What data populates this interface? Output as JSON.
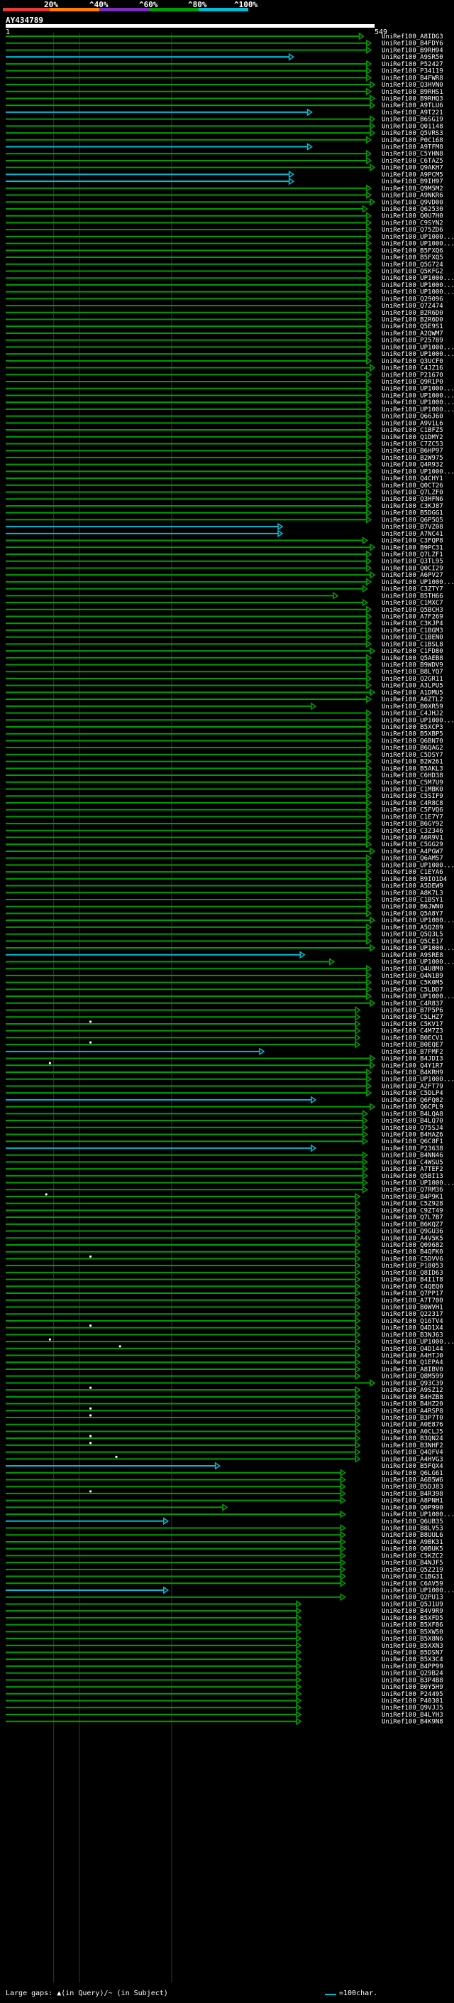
{
  "scale": {
    "labels": [
      "20%",
      "^40%",
      "^60%",
      "^80%",
      "^100%"
    ],
    "colors": [
      "#e53935",
      "#ff7f00",
      "#7b2fbe",
      "#00a000",
      "#00bcd4"
    ]
  },
  "query": {
    "id": "AY434789",
    "start": "1",
    "end": "549"
  },
  "footer": {
    "gaps_label": "Large gaps: ▲(in Query)/~ (in Subject)",
    "legend_label": "=100char."
  },
  "icons": {
    "arrow": "arrowhead-icon",
    "gap": "gap-marker-icon"
  },
  "hits": [
    {
      "id": "UniRef100_A8IDG3",
      "len": 0.97
    },
    {
      "id": "UniRef100_B4FDY6",
      "len": 0.99
    },
    {
      "id": "UniRef100_B9RH94",
      "len": 0.99
    },
    {
      "id": "UniRef100_A9SR50",
      "len": 0.78,
      "color": "cyan"
    },
    {
      "id": "UniRef100_P52427",
      "len": 0.99
    },
    {
      "id": "UniRef100_P34119",
      "len": 0.99
    },
    {
      "id": "UniRef100_B4FWR8",
      "len": 0.99
    },
    {
      "id": "UniRef100_Q3HVN0",
      "len": 1.0
    },
    {
      "id": "UniRef100_B9RHS1",
      "len": 0.99
    },
    {
      "id": "UniRef100_B9RHQ3",
      "len": 1.0
    },
    {
      "id": "UniRef100_A9TLU6",
      "len": 1.0
    },
    {
      "id": "UniRef100_A9T221",
      "len": 0.83,
      "color": "cyan"
    },
    {
      "id": "UniRef100_B6SG19",
      "len": 1.0
    },
    {
      "id": "UniRef100_Q01148",
      "len": 1.0
    },
    {
      "id": "UniRef100_Q5VRS3",
      "len": 1.0
    },
    {
      "id": "UniRef100_P0C168",
      "len": 0.99
    },
    {
      "id": "UniRef100_A9TFM8",
      "len": 0.83,
      "color": "cyan"
    },
    {
      "id": "UniRef100_C5YHN8",
      "len": 0.99
    },
    {
      "id": "UniRef100_C6TAZ5",
      "len": 0.99
    },
    {
      "id": "UniRef100_Q9AKH7",
      "len": 1.0
    },
    {
      "id": "UniRef100_A9PCM5",
      "len": 0.78,
      "color": "cyan"
    },
    {
      "id": "UniRef100_B9IH97",
      "len": 0.78,
      "color": "cyan"
    },
    {
      "id": "UniRef100_Q9M5M2",
      "len": 0.99
    },
    {
      "id": "UniRef100_A9NKR6",
      "len": 0.99
    },
    {
      "id": "UniRef100_Q9VD00",
      "len": 1.0
    },
    {
      "id": "UniRef100_Q62530",
      "len": 0.98
    },
    {
      "id": "UniRef100_Q0U7H0",
      "len": 0.99
    },
    {
      "id": "UniRef100_C9SYN2",
      "len": 0.99
    },
    {
      "id": "UniRef100_Q75ZD6",
      "len": 0.99
    },
    {
      "id": "UniRef100_UP1000...",
      "len": 0.99
    },
    {
      "id": "UniRef100_UP1000...",
      "len": 0.99
    },
    {
      "id": "UniRef100_B5FXQ6",
      "len": 0.99
    },
    {
      "id": "UniRef100_B5FXQ5",
      "len": 0.99
    },
    {
      "id": "UniRef100_Q5G724",
      "len": 0.99
    },
    {
      "id": "UniRef100_Q5KFG2",
      "len": 0.99
    },
    {
      "id": "UniRef100_UP1000...",
      "len": 0.99
    },
    {
      "id": "UniRef100_UP1000...",
      "len": 0.99
    },
    {
      "id": "UniRef100_UP1000...",
      "len": 0.99
    },
    {
      "id": "UniRef100_Q29096",
      "len": 0.99
    },
    {
      "id": "UniRef100_Q7Z474",
      "len": 0.99
    },
    {
      "id": "UniRef100_B2R6D0",
      "len": 0.99
    },
    {
      "id": "UniRef100_B2R6D0",
      "len": 0.99
    },
    {
      "id": "UniRef100_Q5E9S1",
      "len": 0.99
    },
    {
      "id": "UniRef100_A2QWM7",
      "len": 0.99
    },
    {
      "id": "UniRef100_P25789",
      "len": 0.99
    },
    {
      "id": "UniRef100_UP1000...",
      "len": 0.99
    },
    {
      "id": "UniRef100_UP1000...",
      "len": 0.99
    },
    {
      "id": "UniRef100_Q3UCF0",
      "len": 0.99
    },
    {
      "id": "UniRef100_C4JZ16",
      "len": 1.0
    },
    {
      "id": "UniRef100_P21670",
      "len": 0.99
    },
    {
      "id": "UniRef100_Q9R1P0",
      "len": 0.99
    },
    {
      "id": "UniRef100_UP1000...",
      "len": 0.99
    },
    {
      "id": "UniRef100_UP1000...",
      "len": 0.99
    },
    {
      "id": "UniRef100_UP1000...",
      "len": 0.99
    },
    {
      "id": "UniRef100_UP1000...",
      "len": 0.99
    },
    {
      "id": "UniRef100_Q66J60",
      "len": 0.99
    },
    {
      "id": "UniRef100_A9V1L6",
      "len": 0.99
    },
    {
      "id": "UniRef100_C1BFZ5",
      "len": 0.99
    },
    {
      "id": "UniRef100_Q1DMY2",
      "len": 0.99
    },
    {
      "id": "UniRef100_C7ZC53",
      "len": 0.99
    },
    {
      "id": "UniRef100_B6HP97",
      "len": 0.99
    },
    {
      "id": "UniRef100_B2W975",
      "len": 0.99
    },
    {
      "id": "UniRef100_Q4R932",
      "len": 0.99
    },
    {
      "id": "UniRef100_UP1000...",
      "len": 0.99
    },
    {
      "id": "UniRef100_Q4CHY1",
      "len": 0.99
    },
    {
      "id": "UniRef100_Q0CT26",
      "len": 0.99
    },
    {
      "id": "UniRef100_Q7LZF0",
      "len": 0.99
    },
    {
      "id": "UniRef100_Q3HFN6",
      "len": 0.99
    },
    {
      "id": "UniRef100_C3KJ87",
      "len": 0.99
    },
    {
      "id": "UniRef100_B5DGG1",
      "len": 0.99
    },
    {
      "id": "UniRef100_Q6P5Q5",
      "len": 0.99
    },
    {
      "id": "UniRef100_B7VZ08",
      "len": 0.75,
      "color": "cyan"
    },
    {
      "id": "UniRef100_A7NC41",
      "len": 0.75,
      "color": "cyan"
    },
    {
      "id": "UniRef100_C3FQP8",
      "len": 0.98
    },
    {
      "id": "UniRef100_B9PC31",
      "len": 1.0
    },
    {
      "id": "UniRef100_Q7LZF1",
      "len": 0.99
    },
    {
      "id": "UniRef100_Q3TL95",
      "len": 0.99
    },
    {
      "id": "UniRef100_Q0CI29",
      "len": 0.99
    },
    {
      "id": "UniRef100_A6PV27",
      "len": 1.0
    },
    {
      "id": "UniRef100_UP1000...",
      "len": 0.99
    },
    {
      "id": "UniRef100_C3ZTY7",
      "len": 0.98
    },
    {
      "id": "UniRef100_B5TH66",
      "len": 0.9
    },
    {
      "id": "UniRef100_C1MXC7",
      "len": 0.98
    },
    {
      "id": "UniRef100_Q5BCH3",
      "len": 0.99
    },
    {
      "id": "UniRef100_A7F269",
      "len": 0.99
    },
    {
      "id": "UniRef100_C3KJP4",
      "len": 0.99
    },
    {
      "id": "UniRef100_C1BGM3",
      "len": 0.99
    },
    {
      "id": "UniRef100_C1BEN0",
      "len": 0.99
    },
    {
      "id": "UniRef100_C1BSL8",
      "len": 0.99
    },
    {
      "id": "UniRef100_C1FD80",
      "len": 1.0
    },
    {
      "id": "UniRef100_Q5AEB8",
      "len": 0.99
    },
    {
      "id": "UniRef100_B9WDV9",
      "len": 0.99
    },
    {
      "id": "UniRef100_B8LYQ7",
      "len": 0.99
    },
    {
      "id": "UniRef100_Q2GR11",
      "len": 0.99
    },
    {
      "id": "UniRef100_A3LPU5",
      "len": 0.99
    },
    {
      "id": "UniRef100_A1DMU5",
      "len": 1.0
    },
    {
      "id": "UniRef100_A6ZTL2",
      "len": 0.99
    },
    {
      "id": "UniRef100_B0XR59",
      "len": 0.84
    },
    {
      "id": "UniRef100_C4JHJ2",
      "len": 0.99
    },
    {
      "id": "UniRef100_UP1000...",
      "len": 0.99
    },
    {
      "id": "UniRef100_B5XCP3",
      "len": 0.99
    },
    {
      "id": "UniRef100_B5XBP5",
      "len": 0.99
    },
    {
      "id": "UniRef100_Q6BN70",
      "len": 0.99
    },
    {
      "id": "UniRef100_B6QAG2",
      "len": 0.99
    },
    {
      "id": "UniRef100_C5DSY7",
      "len": 0.99
    },
    {
      "id": "UniRef100_B2W261",
      "len": 0.99
    },
    {
      "id": "UniRef100_B5AKL3",
      "len": 0.99
    },
    {
      "id": "UniRef100_C6HD38",
      "len": 0.99
    },
    {
      "id": "UniRef100_C5M7U9",
      "len": 0.99
    },
    {
      "id": "UniRef100_C1MBK0",
      "len": 0.99
    },
    {
      "id": "UniRef100_C5SIF9",
      "len": 0.99
    },
    {
      "id": "UniRef100_C4R8C8",
      "len": 0.99
    },
    {
      "id": "UniRef100_C5FVQ6",
      "len": 0.99
    },
    {
      "id": "UniRef100_C1E7Y7",
      "len": 0.99
    },
    {
      "id": "UniRef100_B6GY92",
      "len": 0.99
    },
    {
      "id": "UniRef100_C3Z346",
      "len": 0.99
    },
    {
      "id": "UniRef100_A6R9V1",
      "len": 0.99
    },
    {
      "id": "UniRef100_C5GG29",
      "len": 0.99
    },
    {
      "id": "UniRef100_A4PGW7",
      "len": 1.0
    },
    {
      "id": "UniRef100_Q6AM57",
      "len": 0.99
    },
    {
      "id": "UniRef100_UP1000...",
      "len": 0.99
    },
    {
      "id": "UniRef100_C1EYA6",
      "len": 0.99
    },
    {
      "id": "UniRef100_B9IO1D4",
      "len": 0.99
    },
    {
      "id": "UniRef100_A5DEW9",
      "len": 0.99
    },
    {
      "id": "UniRef100_A8K7L3",
      "len": 0.99
    },
    {
      "id": "UniRef100_C1BSY1",
      "len": 0.99
    },
    {
      "id": "UniRef100_B6JWN0",
      "len": 0.99
    },
    {
      "id": "UniRef100_Q5A8Y7",
      "len": 0.99
    },
    {
      "id": "UniRef100_UP1000...",
      "len": 1.0
    },
    {
      "id": "UniRef100_A5Q289",
      "len": 0.99
    },
    {
      "id": "UniRef100_Q5Q3L5",
      "len": 0.99
    },
    {
      "id": "UniRef100_Q5CE17",
      "len": 0.99
    },
    {
      "id": "UniRef100_UP1000...",
      "len": 1.0
    },
    {
      "id": "UniRef100_A9SRE8",
      "len": 0.81,
      "color": "cyan"
    },
    {
      "id": "UniRef100_UP1000...",
      "len": 0.89
    },
    {
      "id": "UniRef100_Q4U8M0",
      "len": 0.99
    },
    {
      "id": "UniRef100_Q4N1B9",
      "len": 0.99
    },
    {
      "id": "UniRef100_C5K0M5",
      "len": 0.99
    },
    {
      "id": "UniRef100_C5LDD7",
      "len": 0.99
    },
    {
      "id": "UniRef100_UP1000...",
      "len": 0.99
    },
    {
      "id": "UniRef100_C4R837",
      "len": 1.0
    },
    {
      "id": "UniRef100_B7P5P6",
      "len": 0.96
    },
    {
      "id": "UniRef100_C5LHZ7",
      "len": 0.96
    },
    {
      "id": "UniRef100_C5KV17",
      "len": 0.96,
      "gap": 0.23
    },
    {
      "id": "UniRef100_C4M7Z3",
      "len": 0.96
    },
    {
      "id": "UniRef100_B0ECV1",
      "len": 0.96
    },
    {
      "id": "UniRef100_B0EQE7",
      "len": 0.96,
      "gap": 0.23
    },
    {
      "id": "UniRef100_B7FMF2",
      "len": 0.7,
      "color": "cyan"
    },
    {
      "id": "UniRef100_B4JDI3",
      "len": 1.0
    },
    {
      "id": "UniRef100_Q4Y1R7",
      "len": 1.0,
      "gap": 0.12
    },
    {
      "id": "UniRef100_B4KRH9",
      "len": 0.99
    },
    {
      "id": "UniRef100_UP1000...",
      "len": 0.99
    },
    {
      "id": "UniRef100_A2FT79",
      "len": 0.99
    },
    {
      "id": "UniRef100_C5DLP4",
      "len": 0.99
    },
    {
      "id": "UniRef100_Q6FQ02",
      "len": 0.84,
      "color": "cyan"
    },
    {
      "id": "UniRef100_Q6CPL9",
      "len": 1.0
    },
    {
      "id": "UniRef100_B4LQA8",
      "len": 0.98
    },
    {
      "id": "UniRef100_B4LQ70",
      "len": 0.98
    },
    {
      "id": "UniRef100_Q75SJ4",
      "len": 0.98
    },
    {
      "id": "UniRef100_B4HAZ6",
      "len": 0.98
    },
    {
      "id": "UniRef100_Q6C8F1",
      "len": 0.98
    },
    {
      "id": "UniRef100_P23638",
      "len": 0.84,
      "color": "cyan"
    },
    {
      "id": "UniRef100_B4NN46",
      "len": 0.98
    },
    {
      "id": "UniRef100_C4WSU5",
      "len": 0.98
    },
    {
      "id": "UniRef100_A7TEF2",
      "len": 0.98
    },
    {
      "id": "UniRef100_Q5BI13",
      "len": 0.98
    },
    {
      "id": "UniRef100_UP1000...",
      "len": 0.98
    },
    {
      "id": "UniRef100_Q7RM36",
      "len": 0.98
    },
    {
      "id": "UniRef100_B4P9K1",
      "len": 0.96,
      "gap": 0.11
    },
    {
      "id": "UniRef100_C5Z928",
      "len": 0.96
    },
    {
      "id": "UniRef100_C9ZT49",
      "len": 0.96
    },
    {
      "id": "UniRef100_Q7L7B7",
      "len": 0.96
    },
    {
      "id": "UniRef100_B6KQZ7",
      "len": 0.96
    },
    {
      "id": "UniRef100_Q9GU36",
      "len": 0.96
    },
    {
      "id": "UniRef100_A4V5K5",
      "len": 0.96
    },
    {
      "id": "UniRef100_Q09682",
      "len": 0.96
    },
    {
      "id": "UniRef100_B4QFK0",
      "len": 0.96
    },
    {
      "id": "UniRef100_C5DVV6",
      "len": 0.96,
      "gap": 0.23
    },
    {
      "id": "UniRef100_P18053",
      "len": 0.96
    },
    {
      "id": "UniRef100_Q8ID63",
      "len": 0.96
    },
    {
      "id": "UniRef100_B4I1T8",
      "len": 0.96
    },
    {
      "id": "UniRef100_C4QEQ0",
      "len": 0.96
    },
    {
      "id": "UniRef100_Q7PP17",
      "len": 0.96
    },
    {
      "id": "UniRef100_A7T700",
      "len": 0.96
    },
    {
      "id": "UniRef100_B0WVH1",
      "len": 0.96
    },
    {
      "id": "UniRef100_Q22317",
      "len": 0.96
    },
    {
      "id": "UniRef100_Q16TV4",
      "len": 0.96
    },
    {
      "id": "UniRef100_Q4D1X4",
      "len": 0.96,
      "gap": 0.23
    },
    {
      "id": "UniRef100_B3NJ63",
      "len": 0.96
    },
    {
      "id": "UniRef100_UP1000...",
      "len": 0.96,
      "gap": 0.12
    },
    {
      "id": "UniRef100_Q4D144",
      "len": 0.96,
      "gap": 0.31
    },
    {
      "id": "UniRef100_A4HTJ0",
      "len": 0.96
    },
    {
      "id": "UniRef100_Q1EPA4",
      "len": 0.96
    },
    {
      "id": "UniRef100_A8IBV0",
      "len": 0.96
    },
    {
      "id": "UniRef100_Q8M599",
      "len": 0.96
    },
    {
      "id": "UniRef100_Q93C39",
      "len": 1.0
    },
    {
      "id": "UniRef100_A9SZ12",
      "len": 0.96,
      "gap": 0.23
    },
    {
      "id": "UniRef100_B4HZB8",
      "len": 0.96
    },
    {
      "id": "UniRef100_B4HZ20",
      "len": 0.96
    },
    {
      "id": "UniRef100_A4RSP8",
      "len": 0.96,
      "gap": 0.23
    },
    {
      "id": "UniRef100_B3P7T0",
      "len": 0.96,
      "gap": 0.23
    },
    {
      "id": "UniRef100_A0E876",
      "len": 0.96
    },
    {
      "id": "UniRef100_A0CLJ5",
      "len": 0.96
    },
    {
      "id": "UniRef100_B3QN24",
      "len": 0.96,
      "gap": 0.23
    },
    {
      "id": "UniRef100_B3NHF2",
      "len": 0.96,
      "gap": 0.23
    },
    {
      "id": "UniRef100_Q4QFV4",
      "len": 0.96
    },
    {
      "id": "UniRef100_A4HVG3",
      "len": 0.96,
      "gap": 0.3
    },
    {
      "id": "UniRef100_B5FQX4",
      "len": 0.58,
      "color": "cyan"
    },
    {
      "id": "UniRef100_Q6LG61",
      "len": 0.92
    },
    {
      "id": "UniRef100_A6B5W6",
      "len": 0.92
    },
    {
      "id": "UniRef100_B5DJ83",
      "len": 0.92
    },
    {
      "id": "UniRef100_B4R398",
      "len": 0.92,
      "gap": 0.23
    },
    {
      "id": "UniRef100_A8PNH1",
      "len": 0.92
    },
    {
      "id": "UniRef100_Q0P990",
      "len": 0.6
    },
    {
      "id": "UniRef100_UP1000...",
      "len": 0.92
    },
    {
      "id": "UniRef100_Q6UB35",
      "len": 0.44,
      "color": "cyan"
    },
    {
      "id": "UniRef100_B8LV53",
      "len": 0.92
    },
    {
      "id": "UniRef100_B8UUL6",
      "len": 0.92
    },
    {
      "id": "UniRef100_A9BK31",
      "len": 0.92
    },
    {
      "id": "UniRef100_Q0BUK5",
      "len": 0.92
    },
    {
      "id": "UniRef100_C5KZC2",
      "len": 0.92
    },
    {
      "id": "UniRef100_B4NJF5",
      "len": 0.92
    },
    {
      "id": "UniRef100_Q5Z219",
      "len": 0.92
    },
    {
      "id": "UniRef100_C1BG31",
      "len": 0.92
    },
    {
      "id": "UniRef100_C6AV59",
      "len": 0.92
    },
    {
      "id": "UniRef100_UP1000...",
      "len": 0.44,
      "color": "cyan"
    },
    {
      "id": "UniRef100_Q2PU13",
      "len": 0.92
    },
    {
      "id": "UniRef100_Q5J1U9",
      "len": 0.8
    },
    {
      "id": "UniRef100_B4V9R9",
      "len": 0.8
    },
    {
      "id": "UniRef100_B5XFD5",
      "len": 0.8
    },
    {
      "id": "UniRef100_B5XF86",
      "len": 0.8
    },
    {
      "id": "UniRef100_B5XW50",
      "len": 0.8
    },
    {
      "id": "UniRef100_B5X8N6",
      "len": 0.8
    },
    {
      "id": "UniRef100_B5XXN3",
      "len": 0.8
    },
    {
      "id": "UniRef100_B5DSN7",
      "len": 0.8
    },
    {
      "id": "UniRef100_B5X3C4",
      "len": 0.8
    },
    {
      "id": "UniRef100_B4PP99",
      "len": 0.8
    },
    {
      "id": "UniRef100_Q29B24",
      "len": 0.8
    },
    {
      "id": "UniRef100_B3P4B8",
      "len": 0.8
    },
    {
      "id": "UniRef100_B0Y5H9",
      "len": 0.8
    },
    {
      "id": "UniRef100_P24495",
      "len": 0.8
    },
    {
      "id": "UniRef100_P40301",
      "len": 0.8
    },
    {
      "id": "UniRef100_Q9VJJ5",
      "len": 0.8
    },
    {
      "id": "UniRef100_B4LYH3",
      "len": 0.8
    },
    {
      "id": "UniRef100_B4K9N8",
      "len": 0.8
    }
  ]
}
